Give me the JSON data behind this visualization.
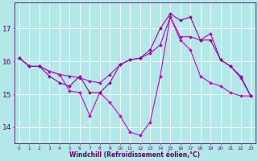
{
  "line1": {
    "x": [
      0,
      1,
      2,
      3,
      4,
      5,
      6,
      7,
      8,
      9,
      10,
      11,
      12,
      13,
      14,
      15,
      16,
      17,
      18,
      19,
      20,
      21,
      22,
      23
    ],
    "y": [
      16.1,
      15.85,
      15.85,
      15.7,
      15.6,
      15.55,
      15.5,
      15.4,
      15.35,
      15.6,
      15.9,
      16.05,
      16.1,
      16.25,
      16.5,
      17.35,
      16.75,
      16.75,
      16.65,
      16.85,
      16.05,
      15.85,
      15.5,
      14.95
    ],
    "color": "#bb00bb"
  },
  "line2": {
    "x": [
      0,
      1,
      2,
      3,
      4,
      5,
      6,
      7,
      8,
      9,
      10,
      11,
      12,
      13,
      14,
      15,
      16,
      17,
      18,
      19,
      20,
      21,
      22,
      23
    ],
    "y": [
      16.1,
      15.85,
      15.85,
      15.7,
      15.6,
      15.1,
      15.05,
      14.35,
      15.05,
      14.75,
      14.35,
      13.85,
      13.75,
      14.15,
      15.55,
      17.35,
      16.65,
      16.35,
      15.55,
      15.35,
      15.25,
      15.05,
      14.95,
      14.95
    ],
    "color": "#cc00cc"
  },
  "line3": {
    "x": [
      0,
      1,
      2,
      3,
      4,
      5,
      6,
      7,
      8,
      9,
      10,
      11,
      12,
      13,
      14,
      15,
      16,
      17,
      18,
      19,
      20,
      21,
      22,
      23
    ],
    "y": [
      16.1,
      15.85,
      15.85,
      15.55,
      15.35,
      15.25,
      15.55,
      15.05,
      15.05,
      15.35,
      15.9,
      16.05,
      16.1,
      16.35,
      17.0,
      17.45,
      17.25,
      17.35,
      16.65,
      16.65,
      16.05,
      15.85,
      15.55,
      14.95
    ],
    "color": "#990099"
  },
  "ylim": [
    13.5,
    17.8
  ],
  "yticks": [
    14,
    15,
    16,
    17
  ],
  "xticks": [
    0,
    1,
    2,
    3,
    4,
    5,
    6,
    7,
    8,
    9,
    10,
    11,
    12,
    13,
    14,
    15,
    16,
    17,
    18,
    19,
    20,
    21,
    22,
    23
  ],
  "xlabel": "Windchill (Refroidissement éolien,°C)",
  "bg_color": "#b2e8e8",
  "grid_color": "#ffffff",
  "tick_color": "#660066",
  "label_color": "#660066",
  "marker": "D",
  "markersize": 2.0,
  "linewidth": 0.8
}
